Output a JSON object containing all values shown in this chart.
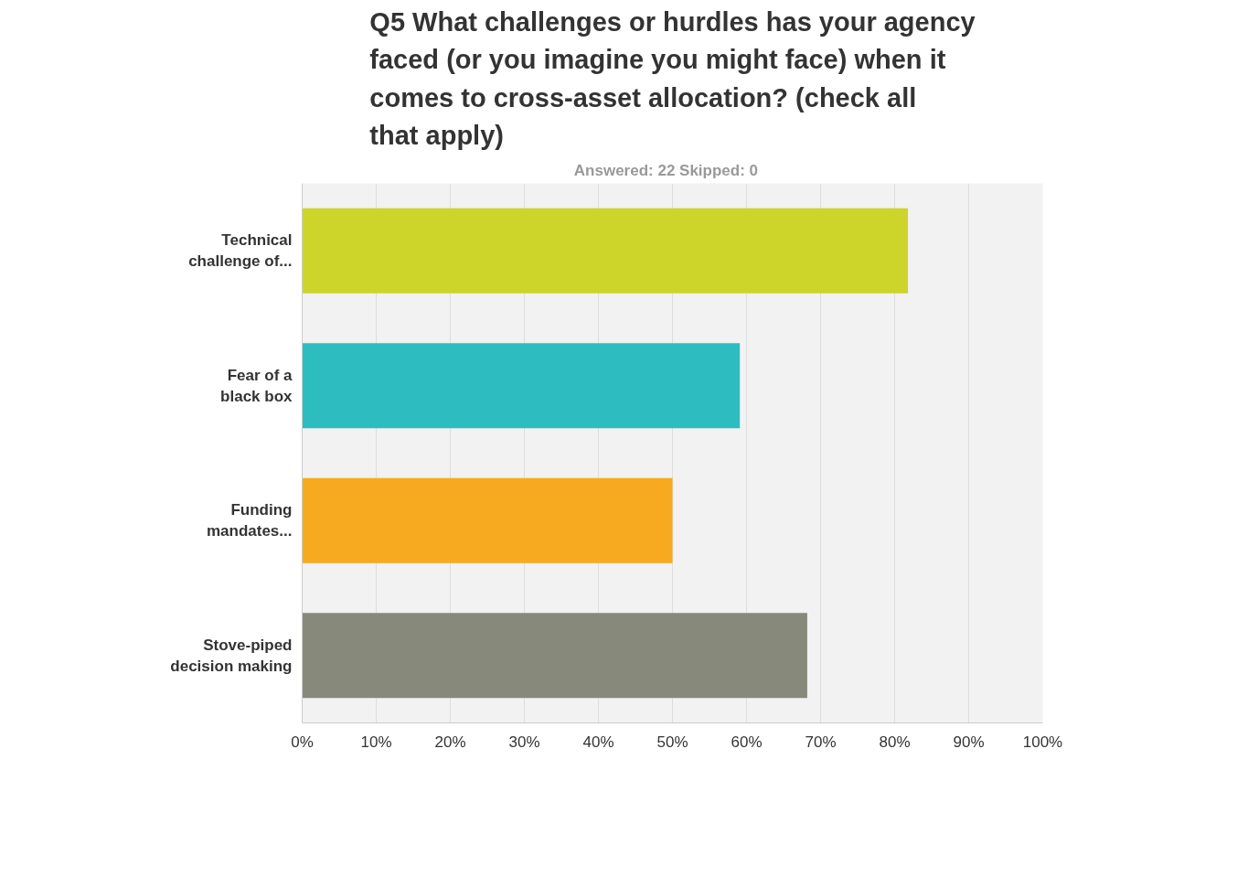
{
  "chart_data": {
    "type": "bar",
    "orientation": "horizontal",
    "title": "Q5 What challenges or hurdles has your agency faced (or you imagine you might face) when it comes to cross-asset allocation? (check all that apply)",
    "subtitle": "Answered: 22    Skipped: 0",
    "categories": [
      "Technical challenge of...",
      "Fear of a black box",
      "Funding mandates...",
      "Stove-piped decision making"
    ],
    "values": [
      81.8,
      59.1,
      50,
      68.2
    ],
    "colors": [
      "#cdd42a",
      "#2dbdc1",
      "#f7aa1f",
      "#878a7a"
    ],
    "xlim": [
      0,
      100
    ],
    "xticks": [
      {
        "value": 0,
        "label": "0%"
      },
      {
        "value": 10,
        "label": "10%"
      },
      {
        "value": 20,
        "label": "20%"
      },
      {
        "value": 30,
        "label": "30%"
      },
      {
        "value": 40,
        "label": "40%"
      },
      {
        "value": 50,
        "label": "50%"
      },
      {
        "value": 60,
        "label": "60%"
      },
      {
        "value": 70,
        "label": "70%"
      },
      {
        "value": 80,
        "label": "80%"
      },
      {
        "value": 90,
        "label": "90%"
      },
      {
        "value": 100,
        "label": "100%"
      }
    ],
    "grid": "x"
  }
}
